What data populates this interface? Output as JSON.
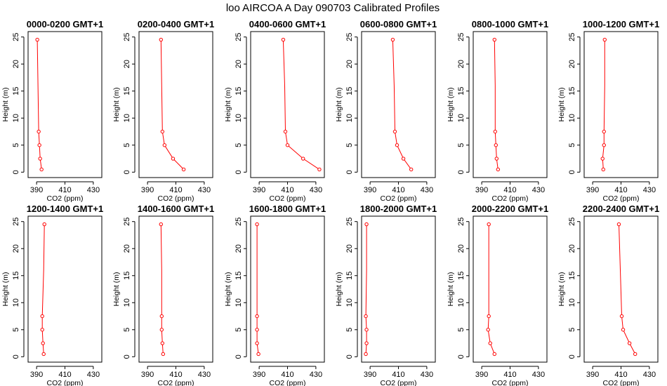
{
  "figure": {
    "title": "loo AIRCOA A  Day 090703  Calibrated Profiles"
  },
  "chart_data": [
    {
      "type": "line",
      "title": "0000-0200 GMT+1",
      "xlabel": "CO2 (ppm)",
      "ylabel": "Height (m)",
      "xlim": [
        384,
        436
      ],
      "ylim": [
        0,
        25
      ],
      "xticks": [
        390,
        410,
        430
      ],
      "yticks": [
        0,
        5,
        10,
        15,
        20,
        25
      ],
      "grid": false,
      "series": [
        {
          "x": [
            393.5,
            392.5,
            392.0,
            391.5,
            391.0,
            390.5
          ],
          "y": [
            0.5,
            2.5,
            5.0,
            7.5,
            16.0,
            24.5
          ],
          "markers": [
            true,
            true,
            true,
            true,
            false,
            true
          ]
        }
      ]
    },
    {
      "type": "line",
      "title": "0200-0400 GMT+1",
      "xlabel": "CO2 (ppm)",
      "ylabel": "Height (m)",
      "xlim": [
        384,
        436
      ],
      "ylim": [
        0,
        25
      ],
      "xticks": [
        390,
        410,
        430
      ],
      "yticks": [
        0,
        5,
        10,
        15,
        20,
        25
      ],
      "grid": false,
      "series": [
        {
          "x": [
            415.5,
            408.0,
            402.0,
            400.5,
            400.0,
            399.5
          ],
          "y": [
            0.5,
            2.5,
            5.0,
            7.5,
            16.0,
            24.5
          ],
          "markers": [
            true,
            true,
            true,
            true,
            false,
            true
          ]
        }
      ]
    },
    {
      "type": "line",
      "title": "0400-0600 GMT+1",
      "xlabel": "CO2 (ppm)",
      "ylabel": "Height (m)",
      "xlim": [
        384,
        436
      ],
      "ylim": [
        0,
        25
      ],
      "xticks": [
        390,
        410,
        430
      ],
      "yticks": [
        0,
        5,
        10,
        15,
        20,
        25
      ],
      "grid": false,
      "series": [
        {
          "x": [
            432.5,
            421.0,
            410.0,
            408.5,
            408.0,
            407.0
          ],
          "y": [
            0.5,
            2.5,
            5.0,
            7.5,
            16.0,
            24.5
          ],
          "markers": [
            true,
            true,
            true,
            true,
            false,
            true
          ]
        }
      ]
    },
    {
      "type": "line",
      "title": "0600-0800 GMT+1",
      "xlabel": "CO2 (ppm)",
      "ylabel": "Height (m)",
      "xlim": [
        384,
        436
      ],
      "ylim": [
        0,
        25
      ],
      "xticks": [
        390,
        410,
        430
      ],
      "yticks": [
        0,
        5,
        10,
        15,
        20,
        25
      ],
      "grid": false,
      "series": [
        {
          "x": [
            419.0,
            413.5,
            409.0,
            407.5,
            407.0,
            406.0
          ],
          "y": [
            0.5,
            2.5,
            5.0,
            7.5,
            16.0,
            24.5
          ],
          "markers": [
            true,
            true,
            true,
            true,
            false,
            true
          ]
        }
      ]
    },
    {
      "type": "line",
      "title": "0800-1000 GMT+1",
      "xlabel": "CO2 (ppm)",
      "ylabel": "Height (m)",
      "xlim": [
        384,
        436
      ],
      "ylim": [
        0,
        25
      ],
      "xticks": [
        390,
        410,
        430
      ],
      "yticks": [
        0,
        5,
        10,
        15,
        20,
        25
      ],
      "grid": false,
      "series": [
        {
          "x": [
            401.5,
            400.5,
            400.0,
            399.5,
            399.5,
            399.0
          ],
          "y": [
            0.5,
            2.5,
            5.0,
            7.5,
            16.0,
            24.5
          ],
          "markers": [
            true,
            true,
            true,
            true,
            false,
            true
          ]
        }
      ]
    },
    {
      "type": "line",
      "title": "1000-1200 GMT+1",
      "xlabel": "CO2 (ppm)",
      "ylabel": "Height (m)",
      "xlim": [
        384,
        436
      ],
      "ylim": [
        0,
        25
      ],
      "xticks": [
        390,
        410,
        430
      ],
      "yticks": [
        0,
        5,
        10,
        15,
        20,
        25
      ],
      "grid": false,
      "series": [
        {
          "x": [
            397.5,
            397.0,
            398.0,
            398.0,
            398.5,
            398.5
          ],
          "y": [
            0.5,
            2.5,
            5.0,
            7.5,
            16.0,
            24.5
          ],
          "markers": [
            true,
            true,
            true,
            true,
            false,
            true
          ]
        }
      ]
    },
    {
      "type": "line",
      "title": "1200-1400 GMT+1",
      "xlabel": "CO2 (ppm)",
      "ylabel": "Height (m)",
      "xlim": [
        384,
        436
      ],
      "ylim": [
        0,
        25
      ],
      "xticks": [
        390,
        410,
        430
      ],
      "yticks": [
        0,
        5,
        10,
        15,
        20,
        25
      ],
      "grid": false,
      "series": [
        {
          "x": [
            395.0,
            394.5,
            394.0,
            394.0,
            395.0,
            395.5
          ],
          "y": [
            0.5,
            2.5,
            5.0,
            7.5,
            16.0,
            24.5
          ],
          "markers": [
            true,
            true,
            true,
            true,
            false,
            true
          ]
        }
      ]
    },
    {
      "type": "line",
      "title": "1400-1600 GMT+1",
      "xlabel": "CO2 (ppm)",
      "ylabel": "Height (m)",
      "xlim": [
        384,
        436
      ],
      "ylim": [
        0,
        25
      ],
      "xticks": [
        390,
        410,
        430
      ],
      "yticks": [
        0,
        5,
        10,
        15,
        20,
        25
      ],
      "grid": false,
      "series": [
        {
          "x": [
            401.0,
            400.5,
            400.0,
            400.0,
            400.0,
            399.5
          ],
          "y": [
            0.5,
            2.5,
            5.0,
            7.5,
            16.0,
            24.5
          ],
          "markers": [
            true,
            true,
            true,
            true,
            false,
            true
          ]
        }
      ]
    },
    {
      "type": "line",
      "title": "1600-1800 GMT+1",
      "xlabel": "CO2 (ppm)",
      "ylabel": "Height (m)",
      "xlim": [
        384,
        436
      ],
      "ylim": [
        0,
        25
      ],
      "xticks": [
        390,
        410,
        430
      ],
      "yticks": [
        0,
        5,
        10,
        15,
        20,
        25
      ],
      "grid": false,
      "series": [
        {
          "x": [
            389.5,
            388.5,
            388.5,
            388.5,
            388.5,
            388.5
          ],
          "y": [
            0.5,
            2.5,
            5.0,
            7.5,
            16.0,
            24.5
          ],
          "markers": [
            true,
            true,
            true,
            true,
            false,
            true
          ]
        }
      ]
    },
    {
      "type": "line",
      "title": "1800-2000 GMT+1",
      "xlabel": "CO2 (ppm)",
      "ylabel": "Height (m)",
      "xlim": [
        384,
        436
      ],
      "ylim": [
        0,
        25
      ],
      "xticks": [
        390,
        410,
        430
      ],
      "yticks": [
        0,
        5,
        10,
        15,
        20,
        25
      ],
      "grid": false,
      "series": [
        {
          "x": [
            387.0,
            387.5,
            387.5,
            387.0,
            387.5,
            387.5
          ],
          "y": [
            0.5,
            2.5,
            5.0,
            7.5,
            16.0,
            24.5
          ],
          "markers": [
            true,
            true,
            true,
            true,
            false,
            true
          ]
        }
      ]
    },
    {
      "type": "line",
      "title": "2000-2200 GMT+1",
      "xlabel": "CO2 (ppm)",
      "ylabel": "Height (m)",
      "xlim": [
        384,
        436
      ],
      "ylim": [
        0,
        25
      ],
      "xticks": [
        390,
        410,
        430
      ],
      "yticks": [
        0,
        5,
        10,
        15,
        20,
        25
      ],
      "grid": false,
      "series": [
        {
          "x": [
            399.0,
            396.0,
            394.5,
            395.0,
            395.0,
            395.0
          ],
          "y": [
            0.5,
            2.5,
            5.0,
            7.5,
            16.0,
            24.5
          ],
          "markers": [
            true,
            true,
            true,
            true,
            false,
            true
          ]
        }
      ]
    },
    {
      "type": "line",
      "title": "2200-2400 GMT+1",
      "xlabel": "CO2 (ppm)",
      "ylabel": "Height (m)",
      "xlim": [
        384,
        436
      ],
      "ylim": [
        0,
        25
      ],
      "xticks": [
        390,
        410,
        430
      ],
      "yticks": [
        0,
        5,
        10,
        15,
        20,
        25
      ],
      "grid": false,
      "series": [
        {
          "x": [
            420.0,
            416.0,
            411.5,
            410.5,
            409.5,
            408.5
          ],
          "y": [
            0.5,
            2.5,
            5.0,
            7.5,
            16.0,
            24.5
          ],
          "markers": [
            true,
            true,
            true,
            true,
            false,
            true
          ]
        }
      ]
    }
  ]
}
